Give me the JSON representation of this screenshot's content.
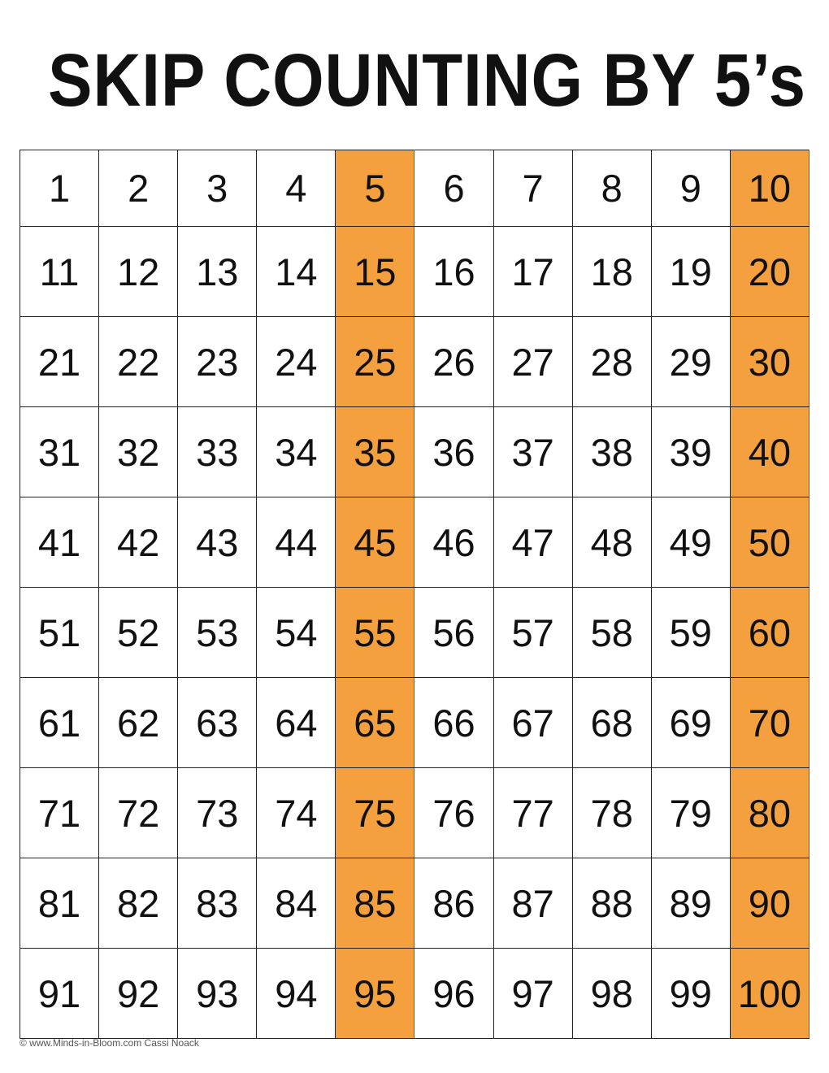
{
  "title": "SKIP COUNTING BY 5’s",
  "highlight_color": "#F4A03F",
  "skip_by": 5,
  "grid": {
    "rows": [
      [
        1,
        2,
        3,
        4,
        5,
        6,
        7,
        8,
        9,
        10
      ],
      [
        11,
        12,
        13,
        14,
        15,
        16,
        17,
        18,
        19,
        20
      ],
      [
        21,
        22,
        23,
        24,
        25,
        26,
        27,
        28,
        29,
        30
      ],
      [
        31,
        32,
        33,
        34,
        35,
        36,
        37,
        38,
        39,
        40
      ],
      [
        41,
        42,
        43,
        44,
        45,
        46,
        47,
        48,
        49,
        50
      ],
      [
        51,
        52,
        53,
        54,
        55,
        56,
        57,
        58,
        59,
        60
      ],
      [
        61,
        62,
        63,
        64,
        65,
        66,
        67,
        68,
        69,
        70
      ],
      [
        71,
        72,
        73,
        74,
        75,
        76,
        77,
        78,
        79,
        80
      ],
      [
        81,
        82,
        83,
        84,
        85,
        86,
        87,
        88,
        89,
        90
      ],
      [
        91,
        92,
        93,
        94,
        95,
        96,
        97,
        98,
        99,
        100
      ]
    ],
    "highlighted": [
      5,
      10,
      15,
      20,
      25,
      30,
      35,
      40,
      45,
      50,
      55,
      60,
      65,
      70,
      75,
      80,
      85,
      90,
      95,
      100
    ]
  },
  "footer": "© www.Minds-in-Bloom.com Cassi Noack"
}
